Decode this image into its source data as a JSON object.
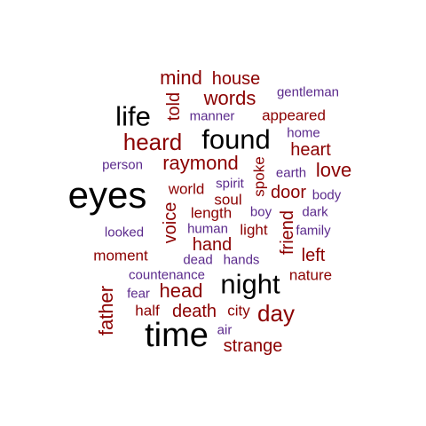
{
  "colors": {
    "black": "#000000",
    "red": "#8b0000",
    "purple": "#5b2a8c"
  },
  "words": [
    {
      "text": "mind",
      "color": "red"
    },
    {
      "text": "house",
      "color": "red"
    },
    {
      "text": "words",
      "color": "red"
    },
    {
      "text": "gentleman",
      "color": "purple"
    },
    {
      "text": "life",
      "color": "black"
    },
    {
      "text": "told",
      "color": "red"
    },
    {
      "text": "manner",
      "color": "purple"
    },
    {
      "text": "appeared",
      "color": "red"
    },
    {
      "text": "heard",
      "color": "red"
    },
    {
      "text": "found",
      "color": "black"
    },
    {
      "text": "home",
      "color": "purple"
    },
    {
      "text": "heart",
      "color": "red"
    },
    {
      "text": "person",
      "color": "purple"
    },
    {
      "text": "raymond",
      "color": "red"
    },
    {
      "text": "spoke",
      "color": "red"
    },
    {
      "text": "earth",
      "color": "purple"
    },
    {
      "text": "love",
      "color": "red"
    },
    {
      "text": "eyes",
      "color": "black"
    },
    {
      "text": "world",
      "color": "red"
    },
    {
      "text": "spirit",
      "color": "purple"
    },
    {
      "text": "door",
      "color": "red"
    },
    {
      "text": "body",
      "color": "purple"
    },
    {
      "text": "soul",
      "color": "red"
    },
    {
      "text": "length",
      "color": "red"
    },
    {
      "text": "boy",
      "color": "purple"
    },
    {
      "text": "friend",
      "color": "red"
    },
    {
      "text": "dark",
      "color": "purple"
    },
    {
      "text": "voice",
      "color": "red"
    },
    {
      "text": "looked",
      "color": "purple"
    },
    {
      "text": "human",
      "color": "purple"
    },
    {
      "text": "light",
      "color": "red"
    },
    {
      "text": "family",
      "color": "purple"
    },
    {
      "text": "hand",
      "color": "red"
    },
    {
      "text": "moment",
      "color": "red"
    },
    {
      "text": "dead",
      "color": "purple"
    },
    {
      "text": "hands",
      "color": "purple"
    },
    {
      "text": "left",
      "color": "red"
    },
    {
      "text": "countenance",
      "color": "purple"
    },
    {
      "text": "night",
      "color": "black"
    },
    {
      "text": "nature",
      "color": "red"
    },
    {
      "text": "fear",
      "color": "purple"
    },
    {
      "text": "head",
      "color": "red"
    },
    {
      "text": "father",
      "color": "red"
    },
    {
      "text": "half",
      "color": "red"
    },
    {
      "text": "death",
      "color": "red"
    },
    {
      "text": "city",
      "color": "red"
    },
    {
      "text": "day",
      "color": "red"
    },
    {
      "text": "time",
      "color": "black"
    },
    {
      "text": "air",
      "color": "purple"
    },
    {
      "text": "strange",
      "color": "red"
    }
  ]
}
